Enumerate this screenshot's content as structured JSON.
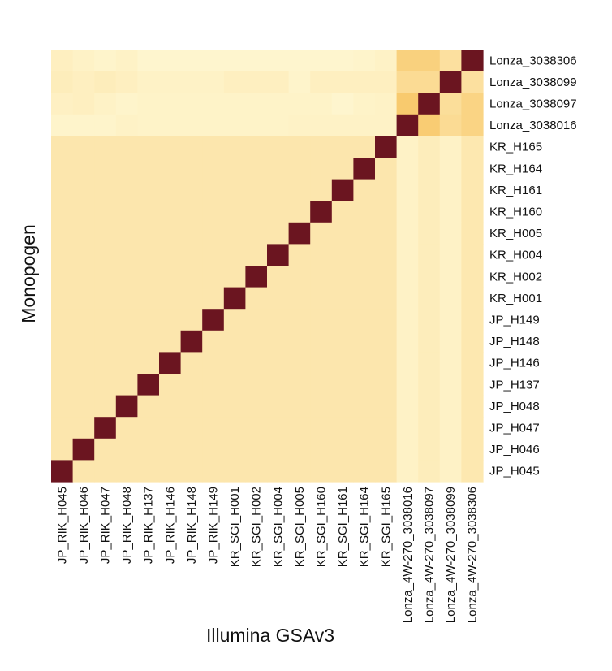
{
  "chart_data": {
    "type": "heatmap",
    "xlabel": "Illumina GSAv3",
    "ylabel": "Monopogen",
    "x_categories": [
      "JP_RIK_H045",
      "JP_RIK_H046",
      "JP_RIK_H047",
      "JP_RIK_H048",
      "JP_RIK_H137",
      "JP_RIK_H146",
      "JP_RIK_H148",
      "JP_RIK_H149",
      "KR_SGI_H001",
      "KR_SGI_H002",
      "KR_SGI_H004",
      "KR_SGI_H005",
      "KR_SGI_H160",
      "KR_SGI_H161",
      "KR_SGI_H164",
      "KR_SGI_H165",
      "Lonza_4W-270_3038016",
      "Lonza_4W-270_3038097",
      "Lonza_4W-270_3038099",
      "Lonza_4W-270_3038306"
    ],
    "y_categories": [
      "Lonza_3038306",
      "Lonza_3038099",
      "Lonza_3038097",
      "Lonza_3038016",
      "KR_H165",
      "KR_H164",
      "KR_H161",
      "KR_H160",
      "KR_H005",
      "KR_H004",
      "KR_H002",
      "KR_H001",
      "JP_H149",
      "JP_H148",
      "JP_H146",
      "JP_H137",
      "JP_H048",
      "JP_H047",
      "JP_H046",
      "JP_H045"
    ],
    "legend": "none",
    "grid": false,
    "values": [
      [
        0.08,
        0.06,
        0.04,
        0.06,
        0.03,
        0.03,
        0.03,
        0.03,
        0.03,
        0.03,
        0.03,
        0.03,
        0.03,
        0.03,
        0.04,
        0.06,
        0.32,
        0.32,
        0.2,
        1.0
      ],
      [
        0.1,
        0.08,
        0.1,
        0.08,
        0.06,
        0.06,
        0.06,
        0.06,
        0.08,
        0.08,
        0.08,
        0.04,
        0.08,
        0.08,
        0.08,
        0.08,
        0.24,
        0.24,
        1.0,
        0.2
      ],
      [
        0.07,
        0.08,
        0.06,
        0.04,
        0.05,
        0.05,
        0.05,
        0.05,
        0.05,
        0.05,
        0.05,
        0.05,
        0.05,
        0.03,
        0.05,
        0.06,
        0.38,
        1.0,
        0.22,
        0.3
      ],
      [
        0.04,
        0.04,
        0.04,
        0.06,
        0.05,
        0.05,
        0.05,
        0.05,
        0.05,
        0.05,
        0.05,
        0.06,
        0.06,
        0.06,
        0.06,
        0.06,
        1.0,
        0.36,
        0.24,
        0.3
      ],
      [
        0.15,
        0.15,
        0.15,
        0.15,
        0.15,
        0.15,
        0.15,
        0.15,
        0.15,
        0.15,
        0.15,
        0.15,
        0.15,
        0.15,
        0.15,
        1.0,
        0.06,
        0.1,
        0.06,
        0.14
      ],
      [
        0.15,
        0.15,
        0.15,
        0.15,
        0.15,
        0.15,
        0.15,
        0.15,
        0.15,
        0.15,
        0.15,
        0.15,
        0.15,
        0.15,
        1.0,
        0.15,
        0.06,
        0.1,
        0.06,
        0.14
      ],
      [
        0.15,
        0.15,
        0.15,
        0.15,
        0.15,
        0.15,
        0.15,
        0.15,
        0.15,
        0.15,
        0.15,
        0.15,
        0.15,
        1.0,
        0.15,
        0.15,
        0.06,
        0.1,
        0.06,
        0.14
      ],
      [
        0.15,
        0.15,
        0.15,
        0.15,
        0.15,
        0.15,
        0.15,
        0.15,
        0.15,
        0.15,
        0.15,
        0.15,
        1.0,
        0.15,
        0.15,
        0.15,
        0.06,
        0.1,
        0.06,
        0.14
      ],
      [
        0.15,
        0.15,
        0.15,
        0.15,
        0.15,
        0.15,
        0.15,
        0.15,
        0.15,
        0.15,
        0.15,
        1.0,
        0.15,
        0.15,
        0.15,
        0.15,
        0.06,
        0.1,
        0.06,
        0.14
      ],
      [
        0.15,
        0.15,
        0.15,
        0.15,
        0.15,
        0.15,
        0.15,
        0.15,
        0.15,
        0.15,
        1.0,
        0.15,
        0.15,
        0.15,
        0.15,
        0.15,
        0.06,
        0.1,
        0.06,
        0.14
      ],
      [
        0.15,
        0.15,
        0.15,
        0.15,
        0.15,
        0.15,
        0.15,
        0.15,
        0.15,
        1.0,
        0.15,
        0.15,
        0.15,
        0.15,
        0.15,
        0.15,
        0.06,
        0.1,
        0.06,
        0.14
      ],
      [
        0.15,
        0.15,
        0.15,
        0.15,
        0.15,
        0.15,
        0.15,
        0.15,
        1.0,
        0.15,
        0.15,
        0.15,
        0.15,
        0.15,
        0.15,
        0.15,
        0.06,
        0.1,
        0.06,
        0.14
      ],
      [
        0.15,
        0.15,
        0.15,
        0.15,
        0.15,
        0.15,
        0.15,
        1.0,
        0.15,
        0.15,
        0.15,
        0.15,
        0.15,
        0.15,
        0.15,
        0.15,
        0.06,
        0.1,
        0.06,
        0.14
      ],
      [
        0.15,
        0.15,
        0.15,
        0.15,
        0.15,
        0.15,
        1.0,
        0.15,
        0.15,
        0.15,
        0.15,
        0.15,
        0.15,
        0.15,
        0.15,
        0.15,
        0.06,
        0.1,
        0.06,
        0.14
      ],
      [
        0.15,
        0.15,
        0.15,
        0.15,
        0.15,
        1.0,
        0.15,
        0.15,
        0.15,
        0.15,
        0.15,
        0.15,
        0.15,
        0.15,
        0.15,
        0.15,
        0.06,
        0.1,
        0.06,
        0.14
      ],
      [
        0.15,
        0.15,
        0.15,
        0.15,
        1.0,
        0.15,
        0.15,
        0.15,
        0.15,
        0.15,
        0.15,
        0.15,
        0.15,
        0.15,
        0.15,
        0.15,
        0.06,
        0.1,
        0.06,
        0.14
      ],
      [
        0.15,
        0.15,
        0.15,
        1.0,
        0.15,
        0.15,
        0.15,
        0.15,
        0.15,
        0.15,
        0.15,
        0.15,
        0.15,
        0.15,
        0.15,
        0.15,
        0.06,
        0.1,
        0.06,
        0.14
      ],
      [
        0.15,
        0.15,
        1.0,
        0.15,
        0.15,
        0.15,
        0.15,
        0.15,
        0.15,
        0.15,
        0.15,
        0.15,
        0.15,
        0.15,
        0.15,
        0.15,
        0.06,
        0.1,
        0.06,
        0.14
      ],
      [
        0.15,
        1.0,
        0.15,
        0.15,
        0.15,
        0.15,
        0.15,
        0.15,
        0.15,
        0.15,
        0.15,
        0.15,
        0.15,
        0.15,
        0.15,
        0.15,
        0.06,
        0.1,
        0.06,
        0.14
      ],
      [
        1.0,
        0.15,
        0.15,
        0.15,
        0.15,
        0.15,
        0.15,
        0.15,
        0.15,
        0.15,
        0.15,
        0.15,
        0.15,
        0.15,
        0.15,
        0.15,
        0.06,
        0.1,
        0.06,
        0.14
      ]
    ],
    "colors": {
      "low": "#fff9d6",
      "mid": "#f8c768",
      "high": "#6b1520"
    }
  }
}
